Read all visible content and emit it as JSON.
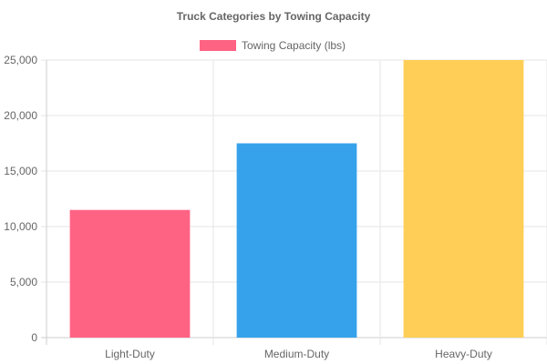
{
  "chart_data": {
    "type": "bar",
    "title": "Truck Categories by Towing Capacity",
    "categories": [
      "Light-Duty",
      "Medium-Duty",
      "Heavy-Duty"
    ],
    "series": [
      {
        "name": "Towing Capacity (lbs)",
        "values": [
          11500,
          17500,
          25000
        ],
        "colors": [
          "#ff6384",
          "#36a2eb",
          "#ffce56"
        ]
      }
    ],
    "legend": {
      "position": "top",
      "swatch_color": "#ff6384"
    },
    "y_ticks": [
      "0",
      "5,000",
      "10,000",
      "15,000",
      "20,000",
      "25,000"
    ],
    "ylim": [
      0,
      25000
    ],
    "grid": true
  }
}
